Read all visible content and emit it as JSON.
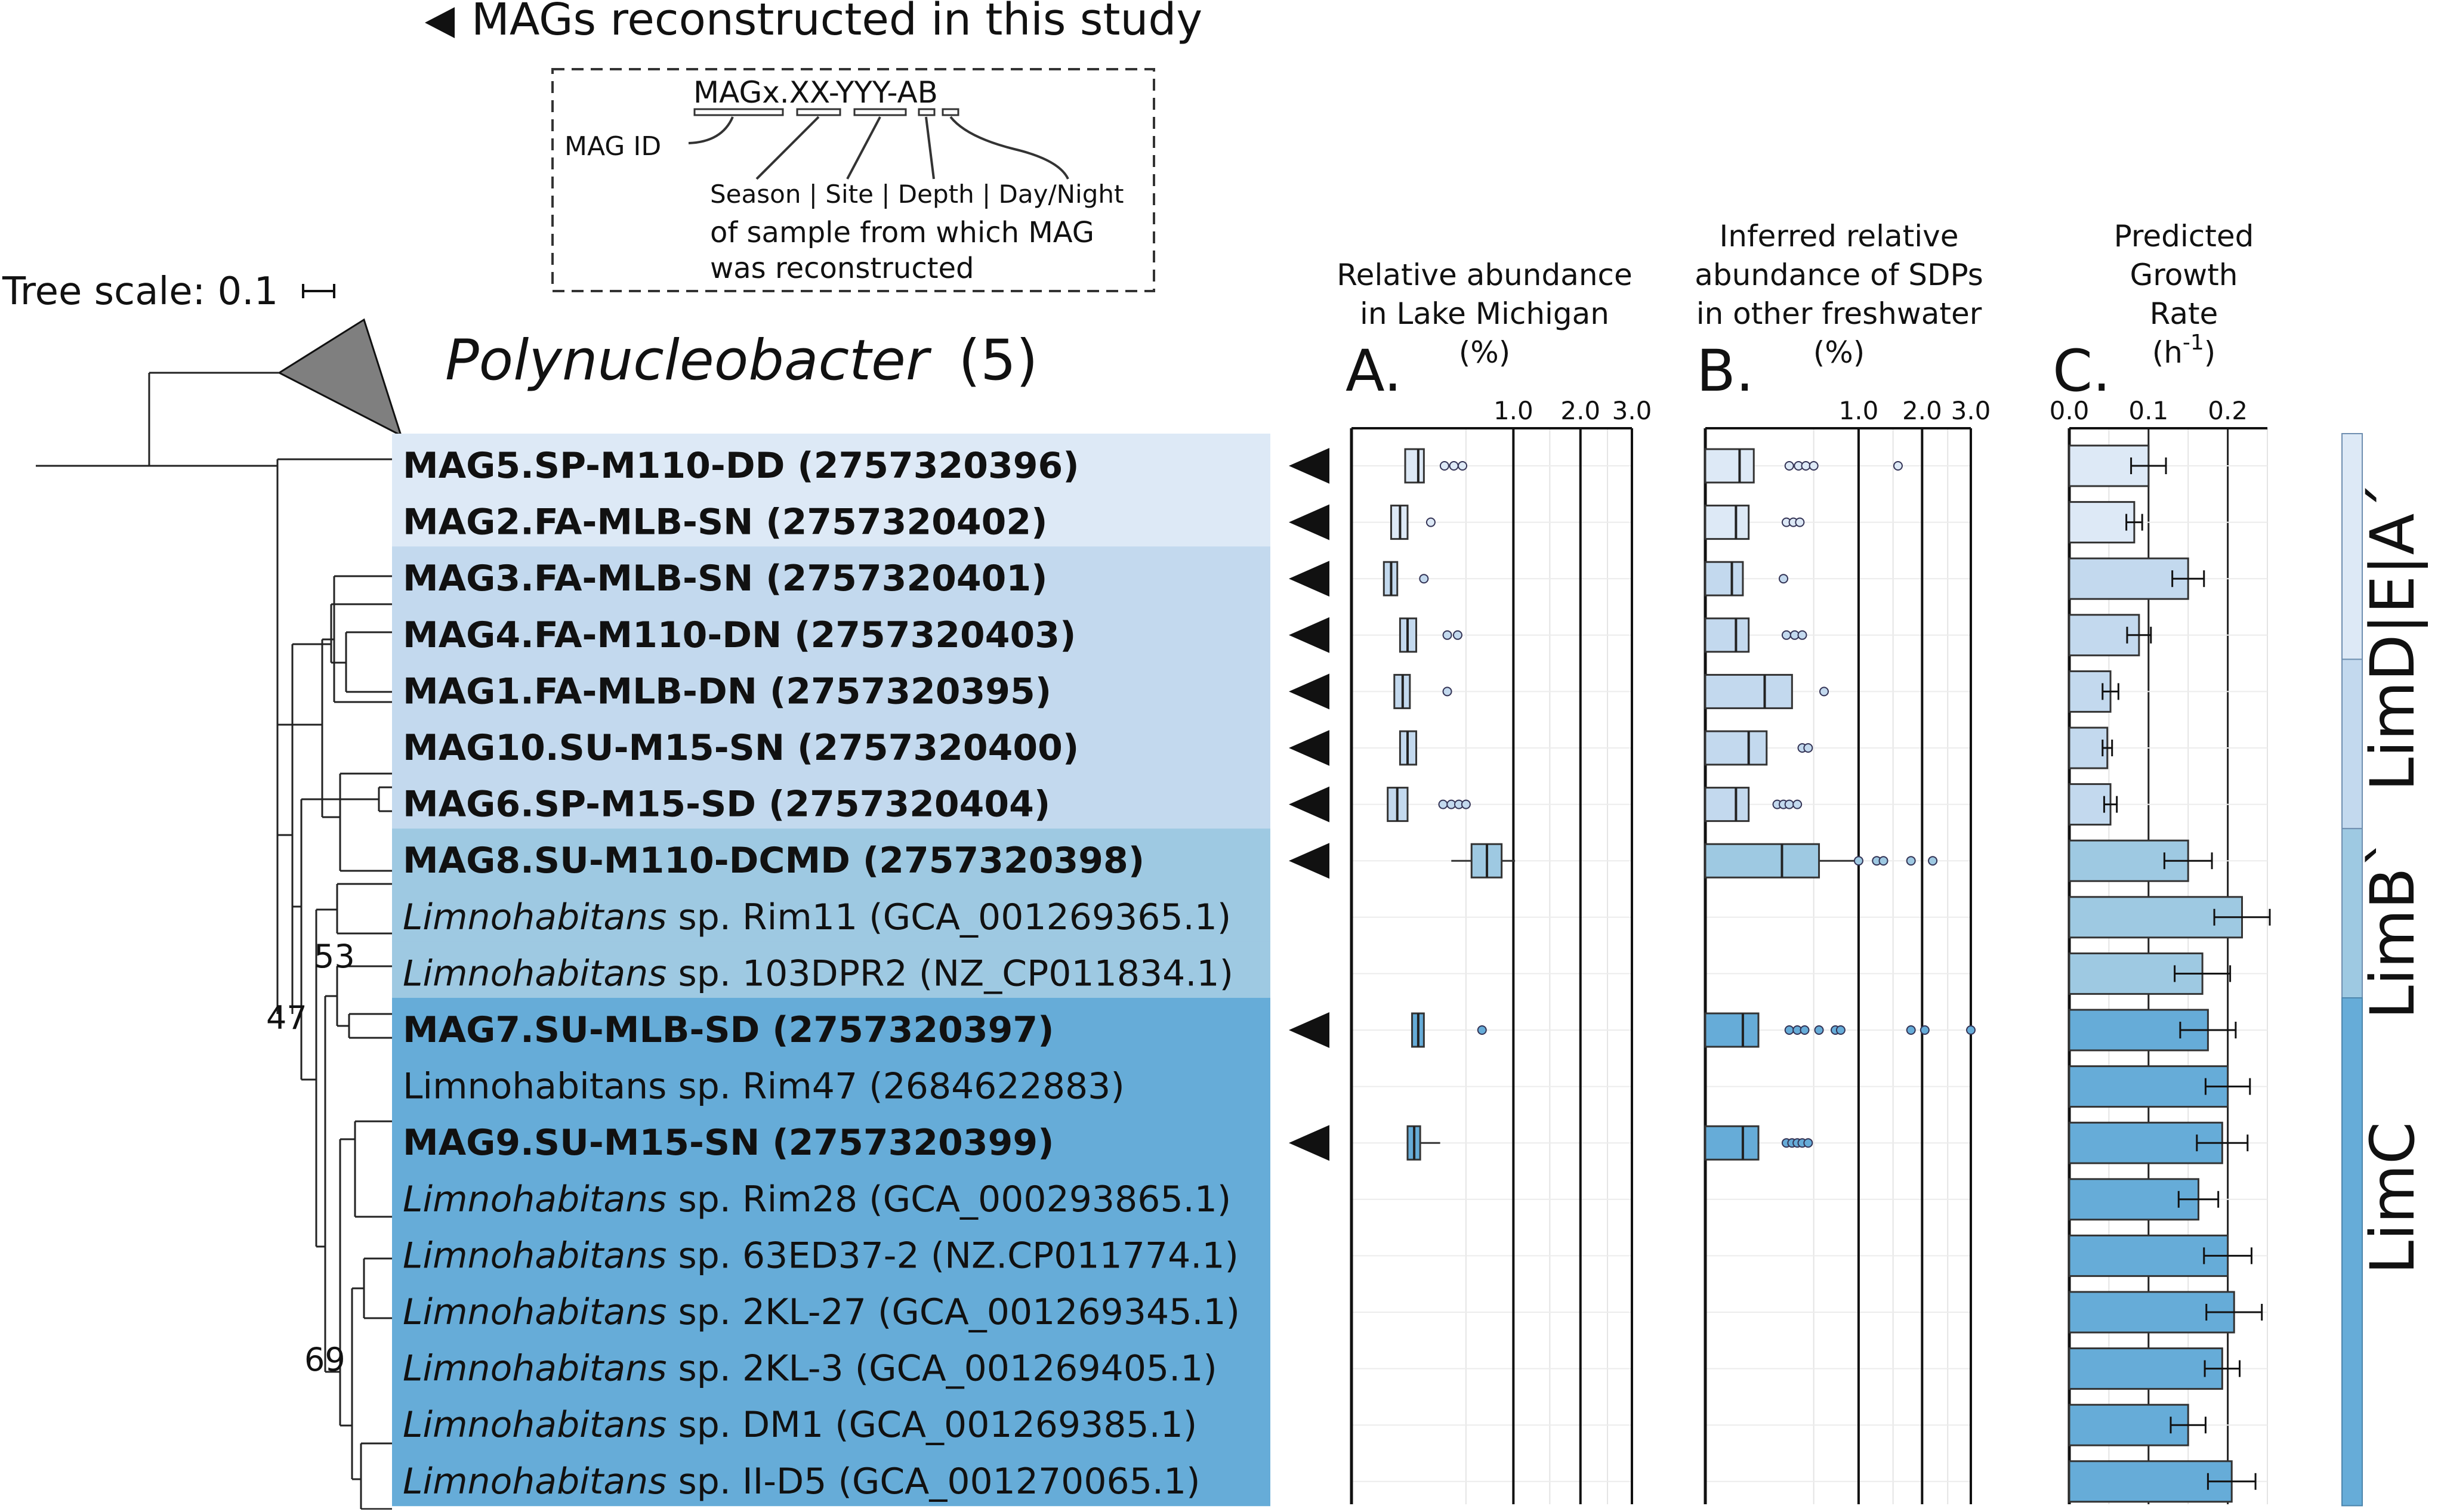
{
  "legend": {
    "marker_text": "MAGs reconstructed in this study",
    "id_format": "MAGx.XX-YYY-AB",
    "mag_id_label": "MAG ID",
    "fields_label": "Season | Site | Depth | Day/Night",
    "sample_line1": "of sample from which MAG",
    "sample_line2": "was reconstructed"
  },
  "tree": {
    "scale_label": "Tree scale: 0.1",
    "outgroup_name": "Polynucleobacter",
    "outgroup_count": "(5)",
    "bootstrap": [
      "53",
      "47",
      "69"
    ]
  },
  "taxa": [
    {
      "genus": "",
      "name": "MAG5.SP-M110-DD (2757320396)",
      "bold": true,
      "study": true,
      "group": "LimDEA",
      "A_box": [
        0.11,
        0.17,
        0.2
      ],
      "A_out": [
        0.33,
        0.4,
        0.47
      ],
      "B_box": [
        0.0,
        0.05,
        0.1
      ],
      "B_out": [
        0.3,
        0.37,
        0.43,
        0.5,
        1.58
      ],
      "growth": 0.1,
      "err": 0.022
    },
    {
      "genus": "",
      "name": "MAG2.FA-MLB-SN (2757320402)",
      "bold": true,
      "study": true,
      "group": "LimDEA",
      "A_box": [
        0.06,
        0.09,
        0.12
      ],
      "A_out": [
        0.24
      ],
      "B_box": [
        0.0,
        0.04,
        0.08
      ],
      "B_out": [
        0.28,
        0.33,
        0.38
      ],
      "growth": 0.082,
      "err": 0.01
    },
    {
      "genus": "",
      "name": "MAG3.FA-MLB-SN (2757320401)",
      "bold": true,
      "study": true,
      "group": "LimDEA",
      "A_box": [
        0.04,
        0.06,
        0.08
      ],
      "A_out": [
        0.2
      ],
      "B_box": [
        0.0,
        0.03,
        0.06
      ],
      "B_out": [
        0.26
      ],
      "growth": 0.15,
      "err": 0.02
    },
    {
      "genus": "",
      "name": "MAG4.FA-M110-DN (2757320403)",
      "bold": true,
      "study": true,
      "group": "LimDEA",
      "A_box": [
        0.09,
        0.12,
        0.16
      ],
      "A_out": [
        0.35,
        0.43
      ],
      "B_box": [
        0.0,
        0.04,
        0.08
      ],
      "B_out": [
        0.28,
        0.34,
        0.4
      ],
      "growth": 0.088,
      "err": 0.015
    },
    {
      "genus": "",
      "name": "MAG1.FA-MLB-DN (2757320395)",
      "bold": true,
      "study": true,
      "group": "LimDEA",
      "A_box": [
        0.07,
        0.1,
        0.13
      ],
      "A_out": [
        0.35
      ],
      "B_box": [
        0.0,
        0.15,
        0.32
      ],
      "B_out": [
        0.6
      ],
      "growth": 0.052,
      "err": 0.01
    },
    {
      "genus": "",
      "name": "MAG10.SU-M15-SN (2757320400)",
      "bold": true,
      "study": true,
      "group": "LimDEA",
      "A_box": [
        0.09,
        0.12,
        0.16
      ],
      "A_out": [],
      "B_box": [
        0.0,
        0.08,
        0.16
      ],
      "B_out": [
        0.4,
        0.45
      ],
      "growth": 0.048,
      "err": 0.006
    },
    {
      "genus": "",
      "name": "MAG6.SP-M15-SD (2757320404)",
      "bold": true,
      "study": true,
      "group": "LimDEA",
      "A_box": [
        0.05,
        0.08,
        0.12
      ],
      "A_out": [
        0.32,
        0.38,
        0.44,
        0.5
      ],
      "B_box": [
        0.0,
        0.04,
        0.08
      ],
      "B_out": [
        0.22,
        0.26,
        0.3,
        0.36
      ],
      "growth": 0.052,
      "err": 0.008
    },
    {
      "genus": "",
      "name": "MAG8.SU-M110-DCMD (2757320398)",
      "bold": true,
      "study": true,
      "group": "LimB",
      "A_box": [
        0.55,
        0.7,
        0.86
      ],
      "A_whisk": [
        0.38,
        1.02
      ],
      "A_out": [],
      "B_box": [
        0.0,
        0.25,
        0.55
      ],
      "B_whisk": [
        0.0,
        1.0
      ],
      "B_out": [
        1.0,
        1.25,
        1.35,
        1.8,
        2.2
      ],
      "growth": 0.15,
      "err": 0.03
    },
    {
      "genus": "Limnohabitans",
      "name": " sp. Rim11 (GCA_001269365.1)",
      "bold": false,
      "study": false,
      "group": "LimB",
      "growth": 0.218,
      "err": 0.035
    },
    {
      "genus": "Limnohabitans",
      "name": " sp. 103DPR2 (NZ_CP011834.1)",
      "bold": false,
      "study": false,
      "group": "LimB",
      "growth": 0.168,
      "err": 0.035
    },
    {
      "genus": "",
      "name": "MAG7.SU-MLB-SD (2757320397)",
      "bold": true,
      "study": true,
      "group": "LimC",
      "A_box": [
        0.14,
        0.17,
        0.2
      ],
      "A_out": [
        0.65
      ],
      "B_box": [
        0.0,
        0.06,
        0.12
      ],
      "B_out": [
        0.3,
        0.36,
        0.42,
        0.55,
        0.72,
        0.78,
        1.8,
        2.05,
        3.0
      ],
      "growth": 0.175,
      "err": 0.035
    },
    {
      "genus": "",
      "name": "Limnohabitans sp. Rim47 (2684622883)",
      "bold": false,
      "study": false,
      "group": "LimC",
      "growth": 0.2,
      "err": 0.028
    },
    {
      "genus": "",
      "name": "MAG9.SU-M15-SN (2757320399)",
      "bold": true,
      "study": true,
      "group": "LimC",
      "A_box": [
        0.12,
        0.15,
        0.18
      ],
      "A_whisk": [
        0.12,
        0.3
      ],
      "A_out": [],
      "B_box": [
        0.0,
        0.06,
        0.12
      ],
      "B_out": [
        0.28,
        0.32,
        0.36,
        0.4,
        0.45
      ],
      "growth": 0.193,
      "err": 0.032
    },
    {
      "genus": "Limnohabitans",
      "name": " sp. Rim28 (GCA_000293865.1)",
      "bold": false,
      "study": false,
      "group": "LimC",
      "growth": 0.163,
      "err": 0.025
    },
    {
      "genus": "Limnohabitans",
      "name": " sp. 63ED37-2 (NZ.CP011774.1)",
      "bold": false,
      "study": false,
      "group": "LimC",
      "growth": 0.2,
      "err": 0.03
    },
    {
      "genus": "Limnohabitans",
      "name": " sp. 2KL-27 (GCA_001269345.1)",
      "bold": false,
      "study": false,
      "group": "LimC",
      "growth": 0.208,
      "err": 0.035
    },
    {
      "genus": "Limnohabitans",
      "name": " sp. 2KL-3 (GCA_001269405.1)",
      "bold": false,
      "study": false,
      "group": "LimC",
      "growth": 0.193,
      "err": 0.022
    },
    {
      "genus": "Limnohabitans",
      "name": " sp. DM1 (GCA_001269385.1)",
      "bold": false,
      "study": false,
      "group": "LimC",
      "growth": 0.15,
      "err": 0.022
    },
    {
      "genus": "Limnohabitans",
      "name": " sp. II-D5 (GCA_001270065.1)",
      "bold": false,
      "study": false,
      "group": "LimC",
      "growth": 0.205,
      "err": 0.03
    }
  ],
  "groups": [
    {
      "id": "LimDEA",
      "label": "LimD|E|A´",
      "light": "#dde9f6",
      "mid": "#c3d9ee"
    },
    {
      "id": "LimB",
      "label": "LimB`",
      "color": "#9ec9e2"
    },
    {
      "id": "LimC",
      "label": "LimC",
      "color": "#66acd8"
    }
  ],
  "panels": {
    "A": {
      "letter": "A.",
      "title": [
        "Relative abundance",
        "in Lake Michigan",
        "(%)"
      ],
      "ticks": [
        "1.0",
        "2.0",
        "3.0"
      ]
    },
    "B": {
      "letter": "B.",
      "title": [
        "Inferred relative",
        "abundance of SDPs",
        "in other freshwater",
        "(%)"
      ],
      "ticks": [
        "1.0",
        "2.0",
        "3.0"
      ]
    },
    "C": {
      "letter": "C.",
      "title": [
        "Predicted",
        "Growth",
        "Rate"
      ],
      "unit_base": "(h",
      "unit_exp": "-1",
      "unit_close": ")",
      "ticks": [
        "0.0",
        "0.1",
        "0.2"
      ]
    }
  },
  "colors": {
    "ink": "#111111",
    "grid": "#e4e4e4",
    "tree": "#222222",
    "outgroup": "#7f7f7f"
  }
}
